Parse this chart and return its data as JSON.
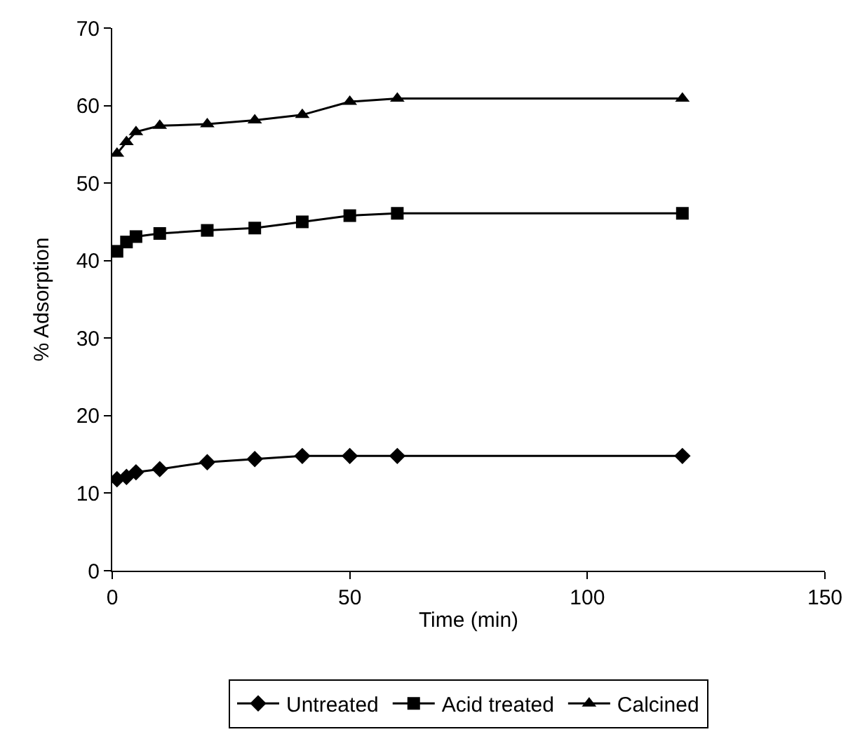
{
  "chart_data": {
    "type": "line",
    "xlabel": "Time (min)",
    "ylabel": "% Adsorption",
    "xlim": [
      0,
      150
    ],
    "xticks": [
      0,
      50,
      100,
      150
    ],
    "ylim": [
      0,
      70
    ],
    "yticks": [
      0,
      10,
      20,
      30,
      40,
      50,
      60,
      70
    ],
    "grid": false,
    "legend": "bottom",
    "line_style": "solid",
    "series": [
      {
        "name": "Untreated",
        "color": "#000000",
        "marker": "diamond",
        "x": [
          1,
          3,
          5,
          10,
          20,
          30,
          40,
          50,
          60,
          120
        ],
        "values": [
          11.8,
          12.1,
          12.7,
          13.1,
          14.0,
          14.4,
          14.8,
          14.8,
          14.8,
          14.8
        ]
      },
      {
        "name": "Acid treated",
        "color": "#000000",
        "marker": "square",
        "x": [
          1,
          3,
          5,
          10,
          20,
          30,
          40,
          50,
          60,
          120
        ],
        "values": [
          41.2,
          42.4,
          43.1,
          43.5,
          43.9,
          44.2,
          45.0,
          45.8,
          46.1,
          46.1
        ]
      },
      {
        "name": "Calcined",
        "color": "#000000",
        "marker": "triangle",
        "x": [
          1,
          3,
          5,
          10,
          20,
          30,
          40,
          50,
          60,
          120
        ],
        "values": [
          53.8,
          55.3,
          56.6,
          57.4,
          57.6,
          58.1,
          58.8,
          60.5,
          60.9,
          60.9
        ]
      }
    ]
  }
}
